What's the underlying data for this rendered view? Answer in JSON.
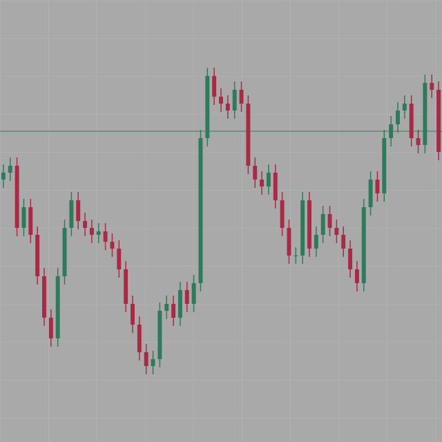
{
  "chart_data": {
    "type": "candlestick",
    "up_color": "#2f7a5c",
    "down_color": "#a82a44",
    "ylim": [
      0,
      640
    ],
    "hline": {
      "value": 450,
      "color": "#5f8a74"
    },
    "open": [
      380,
      390,
      400,
      310,
      340,
      300,
      240,
      180,
      150,
      240,
      310,
      350,
      320,
      310,
      300,
      305,
      290,
      280,
      250,
      200,
      170,
      130,
      110,
      120,
      190,
      200,
      180,
      220,
      200,
      230,
      440,
      530,
      500,
      490,
      480,
      510,
      490,
      400,
      380,
      370,
      390,
      350,
      310,
      270,
      270,
      350,
      280,
      300,
      330,
      310,
      300,
      280,
      250,
      230,
      340,
      380,
      360,
      440,
      460,
      480,
      490,
      440,
      430,
      520,
      510
    ],
    "high": [
      402,
      412,
      412,
      352,
      352,
      312,
      252,
      192,
      252,
      322,
      362,
      362,
      332,
      322,
      317,
      317,
      302,
      292,
      262,
      212,
      182,
      142,
      132,
      202,
      212,
      212,
      232,
      232,
      242,
      452,
      542,
      542,
      512,
      502,
      522,
      522,
      502,
      412,
      392,
      402,
      402,
      362,
      322,
      282,
      362,
      362,
      312,
      342,
      342,
      322,
      312,
      292,
      262,
      352,
      392,
      392,
      452,
      472,
      492,
      502,
      502,
      452,
      532,
      532,
      522
    ],
    "low": [
      368,
      378,
      298,
      298,
      288,
      228,
      168,
      138,
      138,
      228,
      298,
      308,
      298,
      288,
      288,
      278,
      268,
      238,
      188,
      158,
      118,
      98,
      98,
      108,
      178,
      168,
      168,
      188,
      188,
      218,
      428,
      488,
      478,
      468,
      468,
      478,
      388,
      368,
      358,
      358,
      338,
      298,
      258,
      258,
      258,
      268,
      268,
      288,
      298,
      288,
      268,
      238,
      218,
      218,
      328,
      348,
      348,
      428,
      448,
      468,
      428,
      418,
      418,
      498,
      408
    ],
    "close": [
      390,
      400,
      310,
      340,
      300,
      240,
      180,
      150,
      240,
      310,
      350,
      320,
      310,
      300,
      305,
      290,
      280,
      250,
      200,
      170,
      130,
      110,
      120,
      190,
      200,
      180,
      220,
      200,
      230,
      440,
      530,
      500,
      490,
      480,
      510,
      490,
      400,
      380,
      370,
      390,
      350,
      310,
      270,
      270,
      350,
      280,
      300,
      330,
      310,
      300,
      280,
      250,
      230,
      340,
      380,
      360,
      440,
      460,
      480,
      490,
      440,
      430,
      520,
      510,
      420
    ]
  }
}
